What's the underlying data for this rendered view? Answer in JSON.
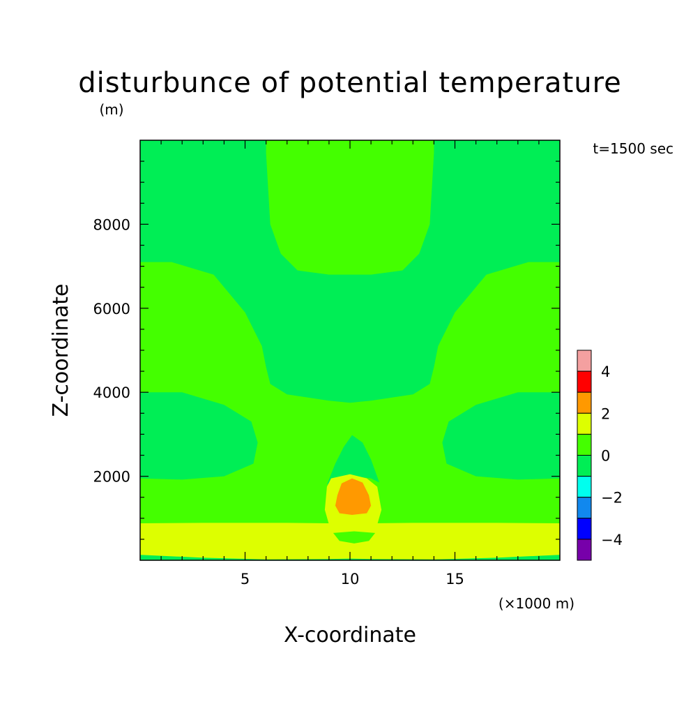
{
  "chart_data": {
    "type": "contour",
    "title": "disturbunce of potential temperature",
    "subtitle": "(m)",
    "time_label": "t=1500 sec",
    "xlabel": "X-coordinate",
    "ylabel": "Z-coordinate",
    "x_unit_label": "(×1000 m)",
    "xlim": [
      0,
      20
    ],
    "ylim": [
      0,
      10000
    ],
    "x_ticks": [
      5,
      10,
      15
    ],
    "x_tick_labels": [
      "5",
      "10",
      "15"
    ],
    "y_ticks": [
      2000,
      4000,
      6000,
      8000
    ],
    "y_tick_labels": [
      "2000",
      "4000",
      "6000",
      "8000"
    ],
    "colorbar": {
      "tick_values": [
        4,
        2,
        0,
        -2,
        -4
      ],
      "tick_labels": [
        "4",
        "2",
        "0",
        "−2",
        "−4"
      ],
      "levels": [
        {
          "from": 4,
          "to": 5,
          "color": "#f4a0a0"
        },
        {
          "from": 3,
          "to": 4,
          "color": "#ff0000"
        },
        {
          "from": 2,
          "to": 3,
          "color": "#ff9900"
        },
        {
          "from": 1,
          "to": 2,
          "color": "#ddff00"
        },
        {
          "from": 0,
          "to": 1,
          "color": "#44ff00"
        },
        {
          "from": -1,
          "to": 0,
          "color": "#00ee55"
        },
        {
          "from": -2,
          "to": -1,
          "color": "#00ffee"
        },
        {
          "from": -3,
          "to": -2,
          "color": "#1188ee"
        },
        {
          "from": -4,
          "to": -3,
          "color": "#0000ff"
        },
        {
          "from": -5,
          "to": -4,
          "color": "#7700aa"
        }
      ]
    },
    "regions": [
      {
        "level": "0 to 1",
        "color": "#44ff00",
        "points": [
          [
            0,
            0
          ],
          [
            20,
            0
          ],
          [
            20,
            10000
          ],
          [
            0,
            10000
          ]
        ]
      },
      {
        "level": "-1 to 0",
        "color": "#00ee55",
        "points": [
          [
            0,
            0
          ],
          [
            20,
            0
          ],
          [
            20,
            130
          ],
          [
            0,
            130
          ]
        ]
      },
      {
        "level": "1 to 2",
        "color": "#ddff00",
        "points": [
          [
            0,
            130
          ],
          [
            3,
            60
          ],
          [
            6,
            20
          ],
          [
            9,
            30
          ],
          [
            10,
            40
          ],
          [
            11,
            30
          ],
          [
            14,
            20
          ],
          [
            17,
            60
          ],
          [
            20,
            130
          ],
          [
            20,
            880
          ],
          [
            17,
            890
          ],
          [
            13,
            890
          ],
          [
            11,
            880
          ],
          [
            10,
            860
          ],
          [
            9,
            880
          ],
          [
            7,
            890
          ],
          [
            3,
            890
          ],
          [
            0,
            880
          ]
        ]
      },
      {
        "level": "0 to 1",
        "color": "#44ff00",
        "points": [
          [
            9.2,
            650
          ],
          [
            9.5,
            460
          ],
          [
            10.2,
            400
          ],
          [
            10.9,
            460
          ],
          [
            11.2,
            650
          ],
          [
            10.2,
            690
          ]
        ]
      },
      {
        "level": "-1 to 0",
        "color": "#00ee55",
        "points": [
          [
            0,
            1950
          ],
          [
            2,
            1920
          ],
          [
            4,
            2000
          ],
          [
            5.4,
            2300
          ],
          [
            5.6,
            2800
          ],
          [
            5.3,
            3300
          ],
          [
            4,
            3700
          ],
          [
            2,
            4000
          ],
          [
            0,
            4000
          ]
        ]
      },
      {
        "level": "-1 to 0",
        "color": "#00ee55",
        "points": [
          [
            20,
            1950
          ],
          [
            18,
            1920
          ],
          [
            16,
            2000
          ],
          [
            14.6,
            2300
          ],
          [
            14.4,
            2800
          ],
          [
            14.7,
            3300
          ],
          [
            16,
            3700
          ],
          [
            18,
            4000
          ],
          [
            20,
            4000
          ]
        ]
      },
      {
        "level": "-1 to 0",
        "color": "#00ee55",
        "points": [
          [
            0,
            7100
          ],
          [
            1.5,
            7100
          ],
          [
            3.5,
            6800
          ],
          [
            5,
            5900
          ],
          [
            5.8,
            5100
          ],
          [
            6,
            4600
          ],
          [
            6.2,
            4200
          ],
          [
            7,
            3950
          ],
          [
            9,
            3800
          ],
          [
            10,
            3750
          ],
          [
            11,
            3800
          ],
          [
            13,
            3950
          ],
          [
            13.8,
            4200
          ],
          [
            14,
            4600
          ],
          [
            14.2,
            5100
          ],
          [
            15,
            5900
          ],
          [
            16.5,
            6800
          ],
          [
            18.5,
            7100
          ],
          [
            20,
            7100
          ],
          [
            20,
            10000
          ],
          [
            0,
            10000
          ]
        ]
      },
      {
        "level": "0 to 1",
        "color": "#44ff00",
        "points": [
          [
            6,
            10000
          ],
          [
            6,
            9700
          ],
          [
            6.2,
            8000
          ],
          [
            6.7,
            7300
          ],
          [
            7.5,
            6900
          ],
          [
            9,
            6800
          ],
          [
            11,
            6800
          ],
          [
            12.5,
            6900
          ],
          [
            13.3,
            7300
          ],
          [
            13.8,
            8000
          ],
          [
            14,
            9700
          ],
          [
            14,
            10000
          ]
        ]
      },
      {
        "level": "-1 to 0",
        "color": "#00ee55",
        "points": [
          [
            8.9,
            1800
          ],
          [
            9.3,
            2300
          ],
          [
            9.7,
            2700
          ],
          [
            10.1,
            2980
          ],
          [
            10.6,
            2800
          ],
          [
            11,
            2400
          ],
          [
            11.4,
            1850
          ],
          [
            11,
            1950
          ],
          [
            10.2,
            2000
          ],
          [
            9.4,
            1950
          ]
        ]
      },
      {
        "level": "1 to 2",
        "color": "#ddff00",
        "points": [
          [
            8.9,
            1750
          ],
          [
            9.1,
            1950
          ],
          [
            10,
            2050
          ],
          [
            10.8,
            1950
          ],
          [
            11.3,
            1750
          ],
          [
            11.5,
            1200
          ],
          [
            11.3,
            850
          ],
          [
            10.2,
            800
          ],
          [
            9.0,
            850
          ],
          [
            8.8,
            1200
          ]
        ]
      },
      {
        "level": "2 to 3",
        "color": "#ff9900",
        "points": [
          [
            9.4,
            1550
          ],
          [
            9.6,
            1830
          ],
          [
            10.1,
            1950
          ],
          [
            10.6,
            1850
          ],
          [
            10.9,
            1550
          ],
          [
            11,
            1300
          ],
          [
            10.8,
            1120
          ],
          [
            10.1,
            1080
          ],
          [
            9.5,
            1120
          ],
          [
            9.3,
            1300
          ]
        ]
      }
    ]
  }
}
